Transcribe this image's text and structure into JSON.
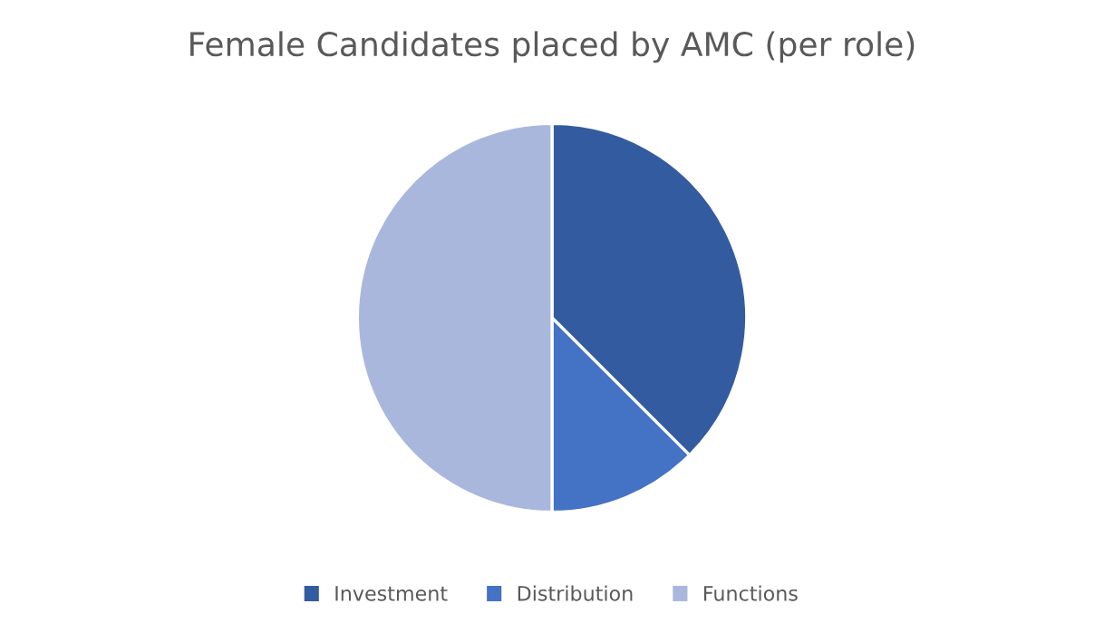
{
  "chart_data": {
    "type": "pie",
    "title": "Female Candidates placed by AMC (per role)",
    "categories": [
      "Investment",
      "Distribution",
      "Functions"
    ],
    "values": [
      37.5,
      12.5,
      50
    ],
    "colors": [
      "#335ba0",
      "#4472c4",
      "#a9b7dc"
    ],
    "legend": "bottom"
  }
}
